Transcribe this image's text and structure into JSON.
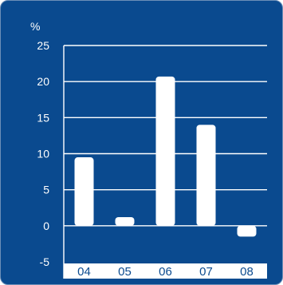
{
  "chart_data": {
    "type": "bar",
    "unit": "%",
    "categories": [
      "04",
      "05",
      "06",
      "07",
      "08"
    ],
    "values": [
      9.5,
      1.2,
      20.7,
      14.0,
      -1.5
    ],
    "ylim": [
      -5,
      25
    ],
    "yticks": [
      25,
      20,
      15,
      10,
      5,
      0,
      -5
    ],
    "grid": true,
    "colors": {
      "background": "#0a4a8f",
      "bar": "#ffffff",
      "grid": "#ffffff",
      "category_band": "#ffffff"
    }
  }
}
